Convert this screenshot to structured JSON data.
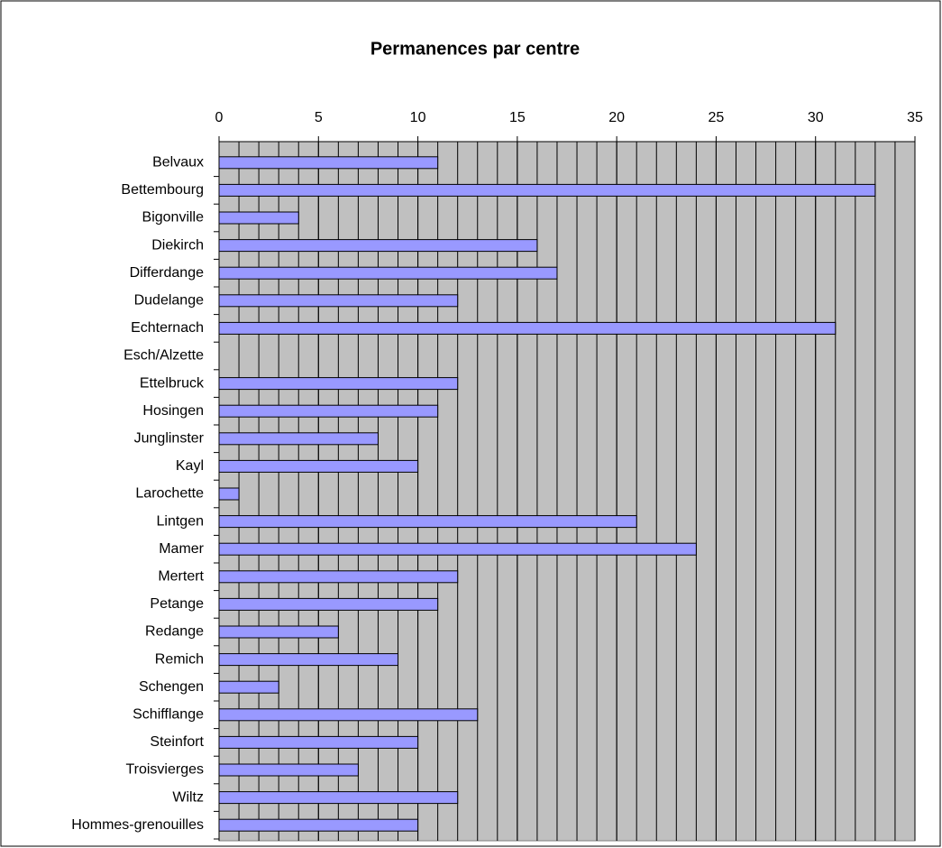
{
  "chart_data": {
    "type": "bar",
    "orientation": "horizontal",
    "title": "Permanences par centre",
    "categories": [
      "Belvaux",
      "Bettembourg",
      "Bigonville",
      "Diekirch",
      "Differdange",
      "Dudelange",
      "Echternach",
      "Esch/Alzette",
      "Ettelbruck",
      "Hosingen",
      "Junglinster",
      "Kayl",
      "Larochette",
      "Lintgen",
      "Mamer",
      "Mertert",
      "Petange",
      "Redange",
      "Remich",
      "Schengen",
      "Schifflange",
      "Steinfort",
      "Troisvierges",
      "Wiltz",
      "Hommes-grenouilles"
    ],
    "values": [
      11,
      33,
      4,
      16,
      17,
      12,
      31,
      0,
      12,
      11,
      8,
      10,
      1,
      21,
      24,
      12,
      11,
      6,
      9,
      3,
      13,
      10,
      7,
      12,
      10
    ],
    "color": "#9999ff",
    "xlim": [
      0,
      35
    ],
    "xticks": [
      0,
      5,
      10,
      15,
      20,
      25,
      30,
      35
    ],
    "grid": true
  }
}
